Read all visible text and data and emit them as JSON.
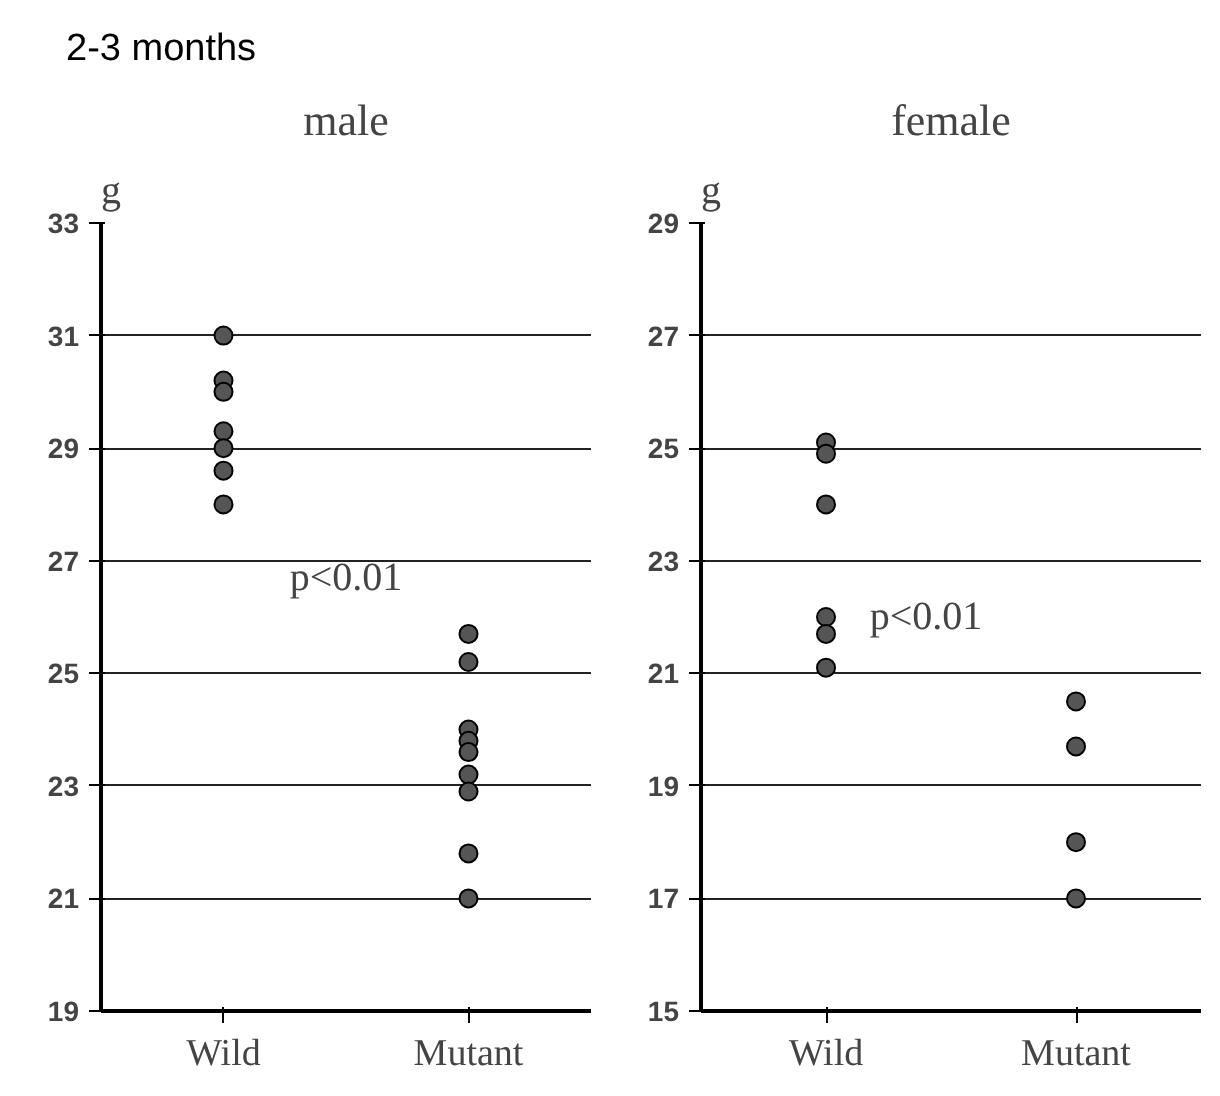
{
  "chart_data": [
    {
      "type": "scatter",
      "title": "male",
      "ylabel": "g",
      "categories": [
        "Wild",
        "Mutant"
      ],
      "series": [
        {
          "color": "#555555",
          "x": [
            "Wild",
            "Wild",
            "Wild",
            "Wild",
            "Wild",
            "Wild",
            "Wild"
          ],
          "values": [
            31.0,
            30.2,
            30.0,
            29.3,
            29.0,
            28.6,
            28.0
          ]
        },
        {
          "color": "#555555",
          "x": [
            "Mutant",
            "Mutant",
            "Mutant",
            "Mutant",
            "Mutant",
            "Mutant",
            "Mutant",
            "Mutant",
            "Mutant"
          ],
          "values": [
            25.7,
            25.2,
            24.0,
            23.8,
            23.6,
            23.2,
            22.9,
            21.8,
            21.0
          ]
        }
      ],
      "ylim": [
        19,
        33
      ],
      "yticks": [
        19,
        21,
        23,
        25,
        27,
        29,
        31,
        33
      ],
      "grid": "y",
      "marker": "circle",
      "annotations": [
        "2-3 months",
        "p<0.01"
      ]
    },
    {
      "type": "scatter",
      "title": "female",
      "ylabel": "g",
      "categories": [
        "Wild",
        "Mutant"
      ],
      "series": [
        {
          "color": "#555555",
          "x": [
            "Wild",
            "Wild",
            "Wild",
            "Wild",
            "Wild",
            "Wild"
          ],
          "values": [
            25.1,
            24.9,
            24.0,
            22.0,
            21.7,
            21.1
          ]
        },
        {
          "color": "#555555",
          "x": [
            "Mutant",
            "Mutant",
            "Mutant",
            "Mutant"
          ],
          "values": [
            20.5,
            19.7,
            18.0,
            17.0
          ]
        }
      ],
      "ylim": [
        15,
        29
      ],
      "yticks": [
        15,
        17,
        19,
        21,
        23,
        25,
        27,
        29
      ],
      "grid": "y",
      "marker": "circle",
      "annotations": [
        "p<0.01"
      ]
    }
  ]
}
